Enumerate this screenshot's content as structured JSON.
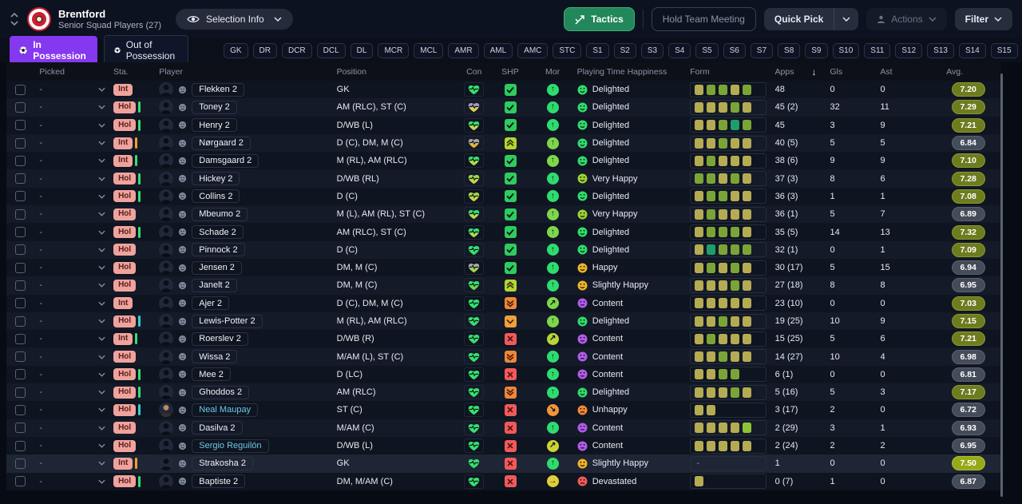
{
  "header": {
    "club_name": "Brentford",
    "subtitle": "Senior Squad Players (27)",
    "selection_info_label": "Selection Info",
    "tactics_label": "Tactics",
    "hold_team_meeting_label": "Hold Team Meeting",
    "quick_pick_label": "Quick Pick",
    "actions_label": "Actions",
    "filter_label": "Filter"
  },
  "tabs": {
    "in_possession": "In Possession",
    "out_of_possession": "Out of Possession"
  },
  "position_filters": [
    "GK",
    "DR",
    "DCR",
    "DCL",
    "DL",
    "MCR",
    "MCL",
    "AMR",
    "AML",
    "AMC",
    "STC",
    "S1",
    "S2",
    "S3",
    "S4",
    "S5",
    "S6",
    "S7",
    "S8",
    "S9",
    "S10",
    "S11",
    "S12",
    "S13",
    "S14",
    "S15"
  ],
  "colors": {
    "accent_purple": "#8438f0",
    "accent_green": "#22875a",
    "badge_salmon": "#f0a29c",
    "bar_green": "#3ddc73",
    "bar_orange": "#f0a030",
    "bar_teal": "#35d0c8"
  },
  "table": {
    "columns": [
      "Picked",
      "Sta.",
      "Player",
      "Position",
      "Con",
      "SHP",
      "Mor",
      "Playing Time Happiness",
      "Form",
      "Apps",
      "Gls",
      "Ast",
      "Avg."
    ],
    "sorted_by": "Apps",
    "sort_direction": "desc",
    "rows": [
      {
        "picked": "-",
        "sta": "Int",
        "bar": null,
        "name": "Flekken 2",
        "link": false,
        "photo": false,
        "position": "GK",
        "con": [
          "#35e06e",
          "#35e06e"
        ],
        "shp": "check",
        "mor": {
          "color": "#2edc6e",
          "dir": "up"
        },
        "happiness": {
          "label": "Delighted",
          "face": "smile",
          "color": "#2edc6e"
        },
        "form": [
          "K",
          "G",
          "G",
          "K",
          "G"
        ],
        "apps": "48",
        "gls": "0",
        "ast": "0",
        "avg": "7.20",
        "avg_tone": "olive",
        "highlight": false
      },
      {
        "picked": "-",
        "sta": "Hol",
        "bar": "#3ddc73",
        "name": "Toney 2",
        "link": false,
        "photo": false,
        "position": "AM (RLC), ST (C)",
        "con": [
          "#a79ab8",
          "#ddd34b"
        ],
        "shp": "check",
        "mor": {
          "color": "#2edc6e",
          "dir": "up"
        },
        "happiness": {
          "label": "Delighted",
          "face": "smile",
          "color": "#2edc6e"
        },
        "form": [
          "K",
          "K",
          "K",
          "G",
          "K"
        ],
        "apps": "45 (2)",
        "gls": "32",
        "ast": "11",
        "avg": "7.29",
        "avg_tone": "olive",
        "highlight": false
      },
      {
        "picked": "-",
        "sta": "Hol",
        "bar": "#3ddc73",
        "name": "Henry 2",
        "link": false,
        "photo": false,
        "position": "D/WB (L)",
        "con": [
          "#35e06e",
          "#c9d34b"
        ],
        "shp": "check",
        "mor": {
          "color": "#2edc6e",
          "dir": "up"
        },
        "happiness": {
          "label": "Delighted",
          "face": "smile",
          "color": "#2edc6e"
        },
        "form": [
          "K",
          "K",
          "G",
          "T",
          "G"
        ],
        "apps": "45",
        "gls": "3",
        "ast": "9",
        "avg": "7.21",
        "avg_tone": "olive",
        "highlight": false
      },
      {
        "picked": "-",
        "sta": "Int",
        "bar": "#f0a030",
        "name": "Nørgaard 2",
        "link": false,
        "photo": false,
        "position": "D (C), DM, M (C)",
        "con": [
          "#a8a8a8",
          "#e8b33c"
        ],
        "shp": "up2",
        "mor": {
          "color": "#7ed64a",
          "dir": "up"
        },
        "happiness": {
          "label": "Delighted",
          "face": "smile",
          "color": "#2edc6e"
        },
        "form": [
          "K",
          "K",
          "G",
          "K",
          "K"
        ],
        "apps": "40 (5)",
        "gls": "5",
        "ast": "5",
        "avg": "6.84",
        "avg_tone": "grey",
        "highlight": false
      },
      {
        "picked": "-",
        "sta": "Int",
        "bar": "#3ddc73",
        "name": "Damsgaard 2",
        "link": false,
        "photo": false,
        "position": "M (RL), AM (RLC)",
        "con": [
          "#35e06e",
          "#b5d84a"
        ],
        "shp": "check",
        "mor": {
          "color": "#7ed64a",
          "dir": "up"
        },
        "happiness": {
          "label": "Delighted",
          "face": "smile",
          "color": "#2edc6e"
        },
        "form": [
          "K",
          "G",
          "K",
          "K",
          "K"
        ],
        "apps": "38 (6)",
        "gls": "9",
        "ast": "9",
        "avg": "7.10",
        "avg_tone": "olive",
        "highlight": false
      },
      {
        "picked": "-",
        "sta": "Hol",
        "bar": "#3ddc73",
        "name": "Hickey 2",
        "link": false,
        "photo": false,
        "position": "D/WB (RL)",
        "con": [
          "#9ed84a",
          "#c9d34b"
        ],
        "shp": "check",
        "mor": {
          "color": "#2edc6e",
          "dir": "up"
        },
        "happiness": {
          "label": "Very Happy",
          "face": "smile",
          "color": "#9ad430"
        },
        "form": [
          "G",
          "G",
          "K",
          "G",
          "K"
        ],
        "apps": "37 (3)",
        "gls": "8",
        "ast": "6",
        "avg": "7.28",
        "avg_tone": "olive",
        "highlight": false
      },
      {
        "picked": "-",
        "sta": "Hol",
        "bar": "#3ddc73",
        "name": "Collins 2",
        "link": false,
        "photo": false,
        "position": "D (C)",
        "con": [
          "#9ed84a",
          "#c9d34b"
        ],
        "shp": "check",
        "mor": {
          "color": "#2edc6e",
          "dir": "up"
        },
        "happiness": {
          "label": "Delighted",
          "face": "smile",
          "color": "#2edc6e"
        },
        "form": [
          "K",
          "G",
          "G",
          "K",
          "K"
        ],
        "apps": "36 (3)",
        "gls": "1",
        "ast": "1",
        "avg": "7.08",
        "avg_tone": "olive",
        "highlight": false
      },
      {
        "picked": "-",
        "sta": "Hol",
        "bar": null,
        "name": "Mbeumo 2",
        "link": false,
        "photo": false,
        "position": "M (L), AM (RL), ST (C)",
        "con": [
          "#35e06e",
          "#c9d34b"
        ],
        "shp": "check",
        "mor": {
          "color": "#7ed64a",
          "dir": "up"
        },
        "happiness": {
          "label": "Very Happy",
          "face": "smile",
          "color": "#9ad430"
        },
        "form": [
          "K",
          "G",
          "K",
          "K",
          "K"
        ],
        "apps": "36 (1)",
        "gls": "5",
        "ast": "7",
        "avg": "6.89",
        "avg_tone": "grey",
        "highlight": false
      },
      {
        "picked": "-",
        "sta": "Hol",
        "bar": "#3ddc73",
        "name": "Schade 2",
        "link": false,
        "photo": false,
        "position": "AM (RLC), ST (C)",
        "con": [
          "#35e06e",
          "#b5d84a"
        ],
        "shp": "check",
        "mor": {
          "color": "#7ed64a",
          "dir": "up"
        },
        "happiness": {
          "label": "Delighted",
          "face": "smile",
          "color": "#2edc6e"
        },
        "form": [
          "K",
          "G",
          "G",
          "G",
          "K"
        ],
        "apps": "35 (5)",
        "gls": "14",
        "ast": "13",
        "avg": "7.32",
        "avg_tone": "olive",
        "highlight": false
      },
      {
        "picked": "-",
        "sta": "Hol",
        "bar": null,
        "name": "Pinnock 2",
        "link": false,
        "photo": false,
        "position": "D (C)",
        "con": [
          "#35e06e",
          "#35e06e"
        ],
        "shp": "check",
        "mor": {
          "color": "#2edc6e",
          "dir": "up"
        },
        "happiness": {
          "label": "Delighted",
          "face": "smile",
          "color": "#2edc6e"
        },
        "form": [
          "K",
          "T",
          "G",
          "G",
          "G"
        ],
        "apps": "32 (1)",
        "gls": "0",
        "ast": "1",
        "avg": "7.09",
        "avg_tone": "olive",
        "highlight": false
      },
      {
        "picked": "-",
        "sta": "Hol",
        "bar": null,
        "name": "Jensen 2",
        "link": false,
        "photo": false,
        "position": "DM, M (C)",
        "con": [
          "#a8a8a8",
          "#9ed84a"
        ],
        "shp": "check",
        "mor": {
          "color": "#2edc6e",
          "dir": "up"
        },
        "happiness": {
          "label": "Happy",
          "face": "smile",
          "color": "#f0b32a"
        },
        "form": [
          "K",
          "G",
          "K",
          "G",
          "K"
        ],
        "apps": "30 (17)",
        "gls": "5",
        "ast": "15",
        "avg": "6.94",
        "avg_tone": "grey",
        "highlight": false
      },
      {
        "picked": "-",
        "sta": "Hol",
        "bar": null,
        "name": "Janelt 2",
        "link": false,
        "photo": false,
        "position": "DM, M (C)",
        "con": [
          "#35e06e",
          "#6cd84a"
        ],
        "shp": "up2",
        "mor": {
          "color": "#2edc6e",
          "dir": "up"
        },
        "happiness": {
          "label": "Slightly Happy",
          "face": "smile",
          "color": "#f0b32a"
        },
        "form": [
          "K",
          "K",
          "K",
          "G",
          "K"
        ],
        "apps": "27 (18)",
        "gls": "8",
        "ast": "8",
        "avg": "6.95",
        "avg_tone": "grey",
        "highlight": false
      },
      {
        "picked": "-",
        "sta": "Int",
        "bar": null,
        "name": "Ajer 2",
        "link": false,
        "photo": false,
        "position": "D (C), DM, M (C)",
        "con": [
          "#35e06e",
          "#35e06e"
        ],
        "shp": "down2",
        "mor": {
          "color": "#7ed64a",
          "dir": "ne"
        },
        "happiness": {
          "label": "Content",
          "face": "neutral",
          "color": "#b05ce8"
        },
        "form": [
          "K",
          "K",
          "K",
          "K",
          "K"
        ],
        "apps": "23 (10)",
        "gls": "0",
        "ast": "0",
        "avg": "7.03",
        "avg_tone": "olive",
        "highlight": false
      },
      {
        "picked": "-",
        "sta": "Hol",
        "bar": "#35d0c8",
        "name": "Lewis-Potter 2",
        "link": false,
        "photo": false,
        "position": "M (RL), AM (RLC)",
        "con": [
          "#35e06e",
          "#35e06e"
        ],
        "shp": "down1",
        "mor": {
          "color": "#7ed64a",
          "dir": "up"
        },
        "happiness": {
          "label": "Delighted",
          "face": "smile",
          "color": "#2edc6e"
        },
        "form": [
          "K",
          "K",
          "G",
          "K",
          "K"
        ],
        "apps": "19 (25)",
        "gls": "10",
        "ast": "9",
        "avg": "7.15",
        "avg_tone": "olive",
        "highlight": false
      },
      {
        "picked": "-",
        "sta": "Int",
        "bar": "#3ddc73",
        "name": "Roerslev 2",
        "link": false,
        "photo": false,
        "position": "D/WB (R)",
        "con": [
          "#35e06e",
          "#35e06e"
        ],
        "shp": "x",
        "mor": {
          "color": "#b8d43a",
          "dir": "ne"
        },
        "happiness": {
          "label": "Content",
          "face": "neutral",
          "color": "#b05ce8"
        },
        "form": [
          "K",
          "G",
          "K",
          "K",
          "K"
        ],
        "apps": "15 (25)",
        "gls": "5",
        "ast": "6",
        "avg": "7.21",
        "avg_tone": "olive",
        "highlight": false
      },
      {
        "picked": "-",
        "sta": "Hol",
        "bar": null,
        "name": "Wissa 2",
        "link": false,
        "photo": false,
        "position": "M/AM (L), ST (C)",
        "con": [
          "#35e06e",
          "#35e06e"
        ],
        "shp": "down2",
        "mor": {
          "color": "#2edc6e",
          "dir": "up"
        },
        "happiness": {
          "label": "Content",
          "face": "neutral",
          "color": "#b05ce8"
        },
        "form": [
          "K",
          "K",
          "G",
          "K",
          "K"
        ],
        "apps": "14 (27)",
        "gls": "10",
        "ast": "4",
        "avg": "6.98",
        "avg_tone": "grey",
        "highlight": false
      },
      {
        "picked": "-",
        "sta": "Hol",
        "bar": "#3ddc73",
        "name": "Mee 2",
        "link": false,
        "photo": false,
        "position": "D (LC)",
        "con": [
          "#35e06e",
          "#35e06e"
        ],
        "shp": "x",
        "mor": {
          "color": "#2edc6e",
          "dir": "up"
        },
        "happiness": {
          "label": "Content",
          "face": "neutral",
          "color": "#b05ce8"
        },
        "form": [
          "K",
          "K",
          "G",
          "G"
        ],
        "apps": "6 (1)",
        "gls": "0",
        "ast": "0",
        "avg": "6.81",
        "avg_tone": "grey",
        "highlight": false
      },
      {
        "picked": "-",
        "sta": "Hol",
        "bar": "#3ddc73",
        "name": "Ghoddos 2",
        "link": false,
        "photo": false,
        "position": "AM (RLC)",
        "con": [
          "#35e06e",
          "#35e06e"
        ],
        "shp": "down2",
        "mor": {
          "color": "#2edc6e",
          "dir": "up"
        },
        "happiness": {
          "label": "Delighted",
          "face": "smile",
          "color": "#2edc6e"
        },
        "form": [
          "K",
          "K",
          "K",
          "G",
          "K"
        ],
        "apps": "5 (16)",
        "gls": "5",
        "ast": "3",
        "avg": "7.17",
        "avg_tone": "olive",
        "highlight": false
      },
      {
        "picked": "-",
        "sta": "Hol",
        "bar": "#35d0c8",
        "name": "Neal Maupay",
        "link": true,
        "photo": true,
        "position": "ST (C)",
        "con": [
          "#35e06e",
          "#35e06e"
        ],
        "shp": "x",
        "mor": {
          "color": "#f0953a",
          "dir": "se"
        },
        "happiness": {
          "label": "Unhappy",
          "face": "frown",
          "color": "#f08a3a"
        },
        "form": [
          "K",
          "K"
        ],
        "apps": "3 (17)",
        "gls": "2",
        "ast": "0",
        "avg": "6.72",
        "avg_tone": "grey",
        "highlight": false
      },
      {
        "picked": "-",
        "sta": "Hol",
        "bar": null,
        "name": "Dasilva 2",
        "link": false,
        "photo": false,
        "position": "M/AM (C)",
        "con": [
          "#35e06e",
          "#35e06e"
        ],
        "shp": "x",
        "mor": {
          "color": "#2edc6e",
          "dir": "up"
        },
        "happiness": {
          "label": "Content",
          "face": "neutral",
          "color": "#b05ce8"
        },
        "form": [
          "K",
          "K",
          "K",
          "K",
          "B"
        ],
        "apps": "2 (29)",
        "gls": "3",
        "ast": "1",
        "avg": "6.93",
        "avg_tone": "grey",
        "highlight": false
      },
      {
        "picked": "-",
        "sta": "Hol",
        "bar": null,
        "name": "Sergio Reguilón",
        "link": true,
        "photo": false,
        "position": "D/WB (L)",
        "con": [
          "#35e06e",
          "#35e06e"
        ],
        "shp": "x",
        "mor": {
          "color": "#cdd434",
          "dir": "ne"
        },
        "happiness": {
          "label": "Content",
          "face": "neutral",
          "color": "#b05ce8"
        },
        "form": [
          "K",
          "K",
          "K",
          "K",
          "K"
        ],
        "apps": "2 (24)",
        "gls": "2",
        "ast": "2",
        "avg": "6.95",
        "avg_tone": "grey",
        "highlight": false
      },
      {
        "picked": "-",
        "sta": "Int",
        "bar": "#f0a030",
        "name": "Strakosha 2",
        "link": false,
        "photo": false,
        "position": "GK",
        "con": [
          "#35e06e",
          "#35e06e"
        ],
        "shp": "x",
        "mor": {
          "color": "#2edc6e",
          "dir": "up"
        },
        "happiness": {
          "label": "Slightly Happy",
          "face": "smile",
          "color": "#f0b32a"
        },
        "form": "-",
        "apps": "1",
        "gls": "0",
        "ast": "0",
        "avg": "7.50",
        "avg_tone": "bright",
        "highlight": true
      },
      {
        "picked": "-",
        "sta": "Hol",
        "bar": "#3ddc73",
        "name": "Baptiste 2",
        "link": false,
        "photo": false,
        "position": "DM, M/AM (C)",
        "con": [
          "#35e06e",
          "#35e06e"
        ],
        "shp": "x",
        "mor": {
          "color": "#e0cf3a",
          "dir": "e"
        },
        "happiness": {
          "label": "Devastated",
          "face": "frown",
          "color": "#f05a5a"
        },
        "form": [
          "K"
        ],
        "apps": "0 (7)",
        "gls": "1",
        "ast": "0",
        "avg": "6.87",
        "avg_tone": "grey",
        "highlight": false
      }
    ]
  }
}
